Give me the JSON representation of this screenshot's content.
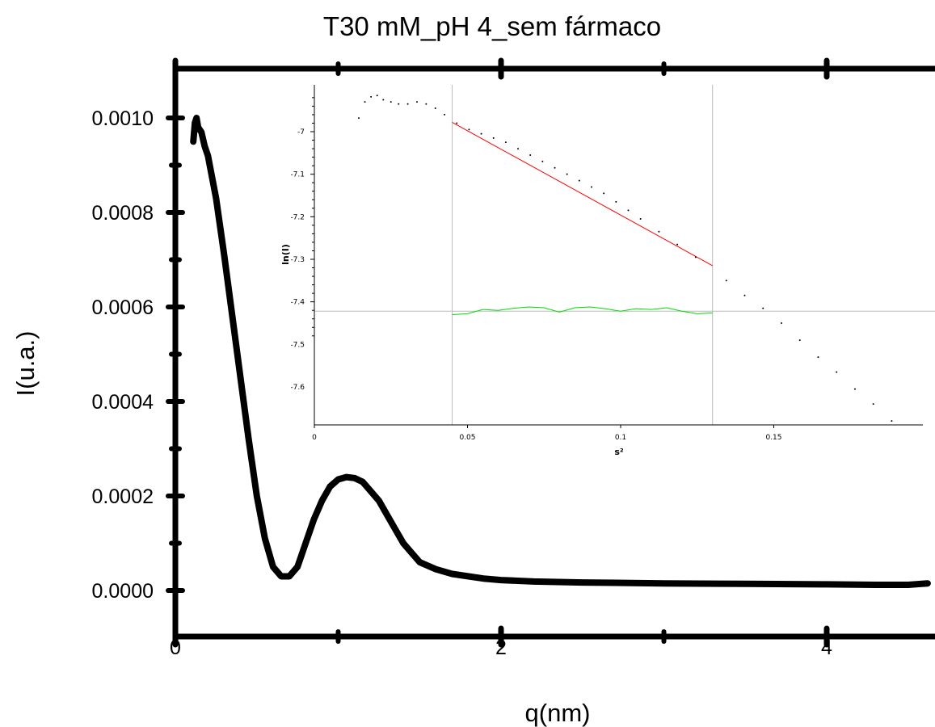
{
  "chart_data": [
    {
      "type": "line",
      "title": "T30 mM_pH 4_sem fármaco",
      "xlabel": "q(nm)",
      "ylabel": "I(u.a.)",
      "xlim": [
        0,
        4.62
      ],
      "ylim": [
        -0.0001,
        0.0011
      ],
      "x_ticks": [
        "0",
        "2",
        "4"
      ],
      "y_ticks": [
        "0.0000",
        "0.0002",
        "0.0004",
        "0.0006",
        "0.0008",
        "0.0010"
      ],
      "grid": false,
      "series": [
        {
          "color": "#000000",
          "x": [
            0.11,
            0.12,
            0.13,
            0.14,
            0.16,
            0.18,
            0.2,
            0.25,
            0.3,
            0.35,
            0.4,
            0.45,
            0.5,
            0.55,
            0.6,
            0.65,
            0.7,
            0.75,
            0.8,
            0.85,
            0.9,
            0.95,
            1.0,
            1.05,
            1.1,
            1.15,
            1.2,
            1.25,
            1.3,
            1.35,
            1.4,
            1.5,
            1.6,
            1.7,
            1.8,
            1.9,
            2.0,
            2.2,
            2.5,
            3.0,
            3.5,
            4.0,
            4.3,
            4.5,
            4.62
          ],
          "values": [
            0.00095,
            0.00099,
            0.001,
            0.00098,
            0.00097,
            0.00094,
            0.00092,
            0.00083,
            0.00071,
            0.00058,
            0.00045,
            0.00032,
            0.0002,
            0.00011,
            5e-05,
            3e-05,
            3e-05,
            5e-05,
            0.0001,
            0.00015,
            0.00019,
            0.00022,
            0.000235,
            0.00024,
            0.000238,
            0.00023,
            0.00021,
            0.00019,
            0.00016,
            0.00013,
            0.0001,
            6e-05,
            4.5e-05,
            3.5e-05,
            3e-05,
            2.5e-05,
            2.2e-05,
            1.9e-05,
            1.7e-05,
            1.5e-05,
            1.4e-05,
            1.3e-05,
            1.2e-05,
            1.2e-05,
            1.5e-05
          ]
        }
      ]
    },
    {
      "type": "scatter",
      "xlabel": "s²",
      "ylabel": "ln(I)",
      "xlim": [
        0,
        0.198
      ],
      "ylim": [
        -7.74,
        -6.91
      ],
      "x_ticks": [
        "0",
        "0.05",
        "0.1",
        "0.15"
      ],
      "y_ticks": [
        "-7",
        "-7.1",
        "-7.2",
        "-7.3",
        "-7.4",
        "-7.5",
        "-7.6"
      ],
      "grid": false,
      "points": {
        "color": "#000000",
        "x": [
          0.0145,
          0.0165,
          0.0185,
          0.0205,
          0.0225,
          0.025,
          0.0275,
          0.0305,
          0.0335,
          0.0365,
          0.0395,
          0.0425,
          0.0465,
          0.0505,
          0.0545,
          0.0585,
          0.0625,
          0.0665,
          0.0705,
          0.0745,
          0.0785,
          0.0825,
          0.0865,
          0.0905,
          0.0945,
          0.0985,
          0.1025,
          0.1065,
          0.1125,
          0.1185,
          0.1245,
          0.1345,
          0.1405,
          0.1465,
          0.1525,
          0.1585,
          0.1645,
          0.1705,
          0.1765,
          0.1825,
          0.1885
        ],
        "values": [
          -6.968,
          -6.93,
          -6.918,
          -6.915,
          -6.925,
          -6.93,
          -6.935,
          -6.935,
          -6.93,
          -6.935,
          -6.945,
          -6.96,
          -6.98,
          -6.995,
          -7.005,
          -7.015,
          -7.025,
          -7.04,
          -7.055,
          -7.07,
          -7.085,
          -7.1,
          -7.115,
          -7.13,
          -7.145,
          -7.165,
          -7.185,
          -7.205,
          -7.235,
          -7.265,
          -7.295,
          -7.35,
          -7.385,
          -7.415,
          -7.45,
          -7.49,
          -7.53,
          -7.565,
          -7.605,
          -7.64,
          -7.68
        ]
      },
      "fit_line": {
        "color": "#ff0000",
        "x": [
          0.045,
          0.13
        ],
        "values": [
          -6.978,
          -7.315
        ]
      },
      "residual_curve": {
        "color": "#00dd00",
        "x": [
          0.045,
          0.05,
          0.055,
          0.06,
          0.065,
          0.07,
          0.075,
          0.08,
          0.085,
          0.09,
          0.095,
          0.1,
          0.105,
          0.11,
          0.115,
          0.12,
          0.125,
          0.13
        ],
        "values": [
          -7.43,
          -7.428,
          -7.418,
          -7.42,
          -7.415,
          -7.412,
          -7.414,
          -7.424,
          -7.414,
          -7.412,
          -7.416,
          -7.422,
          -7.416,
          -7.418,
          -7.414,
          -7.422,
          -7.428,
          -7.426
        ]
      },
      "reference_lines": {
        "color": "#bbbbbb",
        "vertical_x": [
          0.045,
          0.13
        ],
        "horizontal_y": -7.422
      }
    }
  ]
}
